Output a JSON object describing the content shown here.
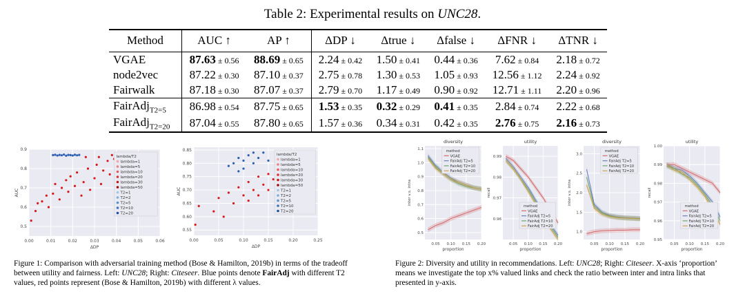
{
  "table": {
    "number": "Table 2:",
    "title": "Experimental results on",
    "dataset": "UNC28",
    "title_end": ".",
    "headers": [
      "Method",
      "AUC ↑",
      "AP ↑",
      "ΔDP ↓",
      "Δtrue ↓",
      "Δfalse ↓",
      "ΔFNR ↓",
      "ΔTNR ↓"
    ],
    "rows": [
      {
        "method": "VGAE",
        "sub": "",
        "cells": [
          [
            "87.63",
            "± 0.56",
            true
          ],
          [
            "88.69",
            "± 0.65",
            true
          ],
          [
            "2.24",
            "± 0.42",
            false
          ],
          [
            "1.50",
            "± 0.41",
            false
          ],
          [
            "0.44",
            "± 0.36",
            false
          ],
          [
            "7.62",
            "± 0.84",
            false
          ],
          [
            "2.18",
            "± 0.72",
            false
          ]
        ]
      },
      {
        "method": "node2vec",
        "sub": "",
        "cells": [
          [
            "87.22",
            "± 0.30",
            false
          ],
          [
            "87.10",
            "± 0.37",
            false
          ],
          [
            "2.75",
            "± 0.78",
            false
          ],
          [
            "1.30",
            "± 0.53",
            false
          ],
          [
            "1.05",
            "± 0.93",
            false
          ],
          [
            "12.56",
            "± 1.12",
            false
          ],
          [
            "2.24",
            "± 0.92",
            false
          ]
        ]
      },
      {
        "method": "Fairwalk",
        "sub": "",
        "cells": [
          [
            "87.18",
            "± 0.30",
            false
          ],
          [
            "87.07",
            "± 0.37",
            false
          ],
          [
            "2.79",
            "± 0.70",
            false
          ],
          [
            "1.17",
            "± 0.49",
            false
          ],
          [
            "0.90",
            "± 0.92",
            false
          ],
          [
            "12.71",
            "± 1.11",
            false
          ],
          [
            "2.20",
            "± 0.96",
            false
          ]
        ]
      },
      {
        "method": "FairAdj",
        "sub": "T2=5",
        "cells": [
          [
            "86.98",
            "± 0.54",
            false
          ],
          [
            "87.75",
            "± 0.65",
            false
          ],
          [
            "1.53",
            "± 0.35",
            true
          ],
          [
            "0.32",
            "± 0.29",
            true
          ],
          [
            "0.41",
            "± 0.35",
            true
          ],
          [
            "2.84",
            "± 0.74",
            false
          ],
          [
            "2.22",
            "± 0.68",
            false
          ]
        ]
      },
      {
        "method": "FairAdj",
        "sub": "T2=20",
        "cells": [
          [
            "87.04",
            "± 0.55",
            false
          ],
          [
            "87.80",
            "± 0.65",
            false
          ],
          [
            "1.57",
            "± 0.36",
            false
          ],
          [
            "0.34",
            "± 0.31",
            false
          ],
          [
            "0.42",
            "± 0.35",
            false
          ],
          [
            "2.76",
            "± 0.75",
            true
          ],
          [
            "2.16",
            "± 0.73",
            true
          ]
        ]
      }
    ]
  },
  "chart_data": [
    {
      "type": "scatter",
      "title": "",
      "xlabel": "ΔDP",
      "ylabel": "AUC",
      "xlim": [
        0,
        0.06
      ],
      "ylim": [
        0.45,
        0.9
      ],
      "xticks": [
        "0.00",
        "0.01",
        "0.02",
        "0.03",
        "0.04",
        "0.05",
        "0.06"
      ],
      "yticks": [
        "0.5",
        "0.6",
        "0.7",
        "0.8",
        "0.9"
      ],
      "legend": [
        "lambda/T2",
        "lambda=1",
        "lambda=5",
        "lambda=10",
        "lambda=20",
        "lambda=30",
        "lambda=50",
        "T2=1",
        "T2=2",
        "T2=5",
        "T2=10",
        "T2=20"
      ],
      "series": [
        {
          "name": "lambda",
          "color": "#d7191c",
          "points": [
            [
              0.001,
              0.53
            ],
            [
              0.003,
              0.58
            ],
            [
              0.004,
              0.62
            ],
            [
              0.006,
              0.63
            ],
            [
              0.008,
              0.66
            ],
            [
              0.009,
              0.6
            ],
            [
              0.011,
              0.67
            ],
            [
              0.012,
              0.72
            ],
            [
              0.014,
              0.64
            ],
            [
              0.015,
              0.7
            ],
            [
              0.017,
              0.74
            ],
            [
              0.018,
              0.68
            ],
            [
              0.019,
              0.76
            ],
            [
              0.021,
              0.71
            ],
            [
              0.022,
              0.78
            ],
            [
              0.024,
              0.66
            ],
            [
              0.025,
              0.73
            ],
            [
              0.027,
              0.8
            ],
            [
              0.028,
              0.69
            ],
            [
              0.03,
              0.75
            ],
            [
              0.031,
              0.82
            ],
            [
              0.033,
              0.72
            ],
            [
              0.034,
              0.79
            ],
            [
              0.036,
              0.84
            ],
            [
              0.037,
              0.77
            ],
            [
              0.039,
              0.85
            ],
            [
              0.041,
              0.8
            ],
            [
              0.043,
              0.83
            ],
            [
              0.045,
              0.87
            ],
            [
              0.026,
              0.86
            ],
            [
              0.032,
              0.86
            ],
            [
              0.038,
              0.87
            ]
          ]
        },
        {
          "name": "T2",
          "color": "#2b5fb4",
          "points": [
            [
              0.011,
              0.87
            ],
            [
              0.012,
              0.872
            ],
            [
              0.013,
              0.868
            ],
            [
              0.014,
              0.871
            ],
            [
              0.015,
              0.869
            ],
            [
              0.016,
              0.873
            ],
            [
              0.017,
              0.867
            ],
            [
              0.018,
              0.871
            ],
            [
              0.019,
              0.87
            ],
            [
              0.02,
              0.868
            ],
            [
              0.021,
              0.872
            ],
            [
              0.022,
              0.869
            ],
            [
              0.023,
              0.871
            ]
          ]
        }
      ]
    },
    {
      "type": "scatter",
      "title": "",
      "xlabel": "ΔDP",
      "ylabel": "AUC",
      "xlim": [
        0,
        0.25
      ],
      "ylim": [
        0.53,
        0.86
      ],
      "xticks": [
        "0.00",
        "0.05",
        "0.10",
        "0.15",
        "0.20",
        "0.25"
      ],
      "yticks": [
        "0.55",
        "0.60",
        "0.65",
        "0.70",
        "0.75",
        "0.80",
        "0.85"
      ],
      "legend": [
        "lambda/T2",
        "lambda=1",
        "lambda=5",
        "lambda=10",
        "lambda=20",
        "lambda=30",
        "lambda=50",
        "T2=1",
        "T2=2",
        "T2=5",
        "T2=10",
        "T2=20"
      ],
      "series": [
        {
          "name": "lambda",
          "color": "#d7191c",
          "points": [
            [
              0.003,
              0.57
            ],
            [
              0.01,
              0.64
            ],
            [
              0.04,
              0.62
            ],
            [
              0.05,
              0.67
            ],
            [
              0.06,
              0.6
            ],
            [
              0.07,
              0.69
            ],
            [
              0.08,
              0.65
            ],
            [
              0.09,
              0.71
            ],
            [
              0.1,
              0.68
            ],
            [
              0.11,
              0.73
            ],
            [
              0.12,
              0.7
            ],
            [
              0.13,
              0.75
            ],
            [
              0.14,
              0.72
            ],
            [
              0.15,
              0.76
            ],
            [
              0.16,
              0.74
            ],
            [
              0.17,
              0.77
            ],
            [
              0.18,
              0.73
            ],
            [
              0.19,
              0.78
            ],
            [
              0.11,
              0.66
            ],
            [
              0.13,
              0.68
            ],
            [
              0.15,
              0.7
            ],
            [
              0.2,
              0.79
            ]
          ]
        },
        {
          "name": "T2",
          "color": "#2b5fb4",
          "points": [
            [
              0.07,
              0.79
            ],
            [
              0.08,
              0.8
            ],
            [
              0.09,
              0.82
            ],
            [
              0.1,
              0.81
            ],
            [
              0.11,
              0.83
            ],
            [
              0.12,
              0.8
            ],
            [
              0.13,
              0.82
            ],
            [
              0.14,
              0.84
            ],
            [
              0.1,
              0.78
            ],
            [
              0.12,
              0.84
            ],
            [
              0.15,
              0.81
            ],
            [
              0.09,
              0.77
            ]
          ]
        }
      ]
    },
    {
      "type": "line",
      "title": "diversity",
      "xlabel": "proportion",
      "ylabel": "inter v.s. intra",
      "x": [
        0.025,
        0.05,
        0.075,
        0.1,
        0.125,
        0.15,
        0.175,
        0.2
      ],
      "xlim": [
        0.015,
        0.2
      ],
      "ylim": [
        0.45,
        1.12
      ],
      "xticks": [
        "0.05",
        "0.10",
        "0.15",
        "0.20"
      ],
      "yticks": [
        "0.5",
        "0.6",
        "0.7",
        "0.8",
        "0.9",
        "1.0",
        "1.1"
      ],
      "legend": [
        "method",
        "VGAE",
        "FairAdj T2=5",
        "FairAdj T2=10",
        "FairAdj T2=20"
      ],
      "series": [
        {
          "name": "VGAE",
          "color": "#d26a6a",
          "values": [
            0.52,
            0.55,
            0.57,
            0.6,
            0.62,
            0.64,
            0.66,
            0.68
          ]
        },
        {
          "name": "FairAdj T2=5",
          "color": "#6a7fc4",
          "values": [
            1.05,
            0.98,
            0.93,
            0.89,
            0.86,
            0.84,
            0.82,
            0.81
          ]
        },
        {
          "name": "FairAdj T2=10",
          "color": "#6aa56a",
          "values": [
            1.04,
            0.97,
            0.92,
            0.88,
            0.85,
            0.83,
            0.82,
            0.81
          ]
        },
        {
          "name": "FairAdj T2=20",
          "color": "#c9a14a",
          "values": [
            1.03,
            0.96,
            0.92,
            0.88,
            0.86,
            0.84,
            0.82,
            0.81
          ]
        }
      ]
    },
    {
      "type": "line",
      "title": "utility",
      "xlabel": "proportion",
      "ylabel": "recall",
      "x": [
        0.025,
        0.05,
        0.075,
        0.1,
        0.125,
        0.15,
        0.175,
        0.2
      ],
      "xlim": [
        0.015,
        0.2
      ],
      "ylim": [
        0.95,
        0.995
      ],
      "xticks": [
        "0.05",
        "0.10",
        "0.15",
        "0.20"
      ],
      "yticks": [
        "0.96",
        "0.97",
        "0.98",
        "0.99"
      ],
      "legend": [
        "method",
        "VGAE",
        "FairAdj T2=5",
        "FairAdj T2=10",
        "FairAdj T2=20"
      ],
      "series": [
        {
          "name": "VGAE",
          "color": "#d26a6a",
          "values": [
            0.99,
            0.988,
            0.984,
            0.98,
            0.975,
            0.97,
            0.964,
            0.958
          ]
        },
        {
          "name": "FairAdj T2=5",
          "color": "#6a7fc4",
          "values": [
            0.989,
            0.985,
            0.98,
            0.975,
            0.969,
            0.963,
            0.957,
            0.952
          ]
        },
        {
          "name": "FairAdj T2=10",
          "color": "#6aa56a",
          "values": [
            0.988,
            0.984,
            0.979,
            0.974,
            0.968,
            0.962,
            0.956,
            0.951
          ]
        },
        {
          "name": "FairAdj T2=20",
          "color": "#c9a14a",
          "values": [
            0.988,
            0.984,
            0.979,
            0.973,
            0.967,
            0.961,
            0.955,
            0.95
          ]
        }
      ]
    },
    {
      "type": "line",
      "title": "diversity",
      "xlabel": "proportion",
      "ylabel": "inter v.s. intra",
      "x": [
        0.025,
        0.05,
        0.075,
        0.1,
        0.125,
        0.15,
        0.175,
        0.2
      ],
      "xlim": [
        0.015,
        0.2
      ],
      "ylim": [
        0.8,
        3.2
      ],
      "xticks": [
        "0.05",
        "0.10",
        "0.15",
        "0.20"
      ],
      "yticks": [
        "1.0",
        "1.5",
        "2.0",
        "2.5",
        "3.0"
      ],
      "legend": [
        "method",
        "VGAE",
        "FairAdj T2=5",
        "FairAdj T2=10",
        "FairAdj T2=20"
      ],
      "series": [
        {
          "name": "VGAE",
          "color": "#d26a6a",
          "values": [
            0.95,
            1.0,
            1.02,
            1.03,
            1.04,
            1.04,
            1.05,
            1.05
          ]
        },
        {
          "name": "FairAdj T2=5",
          "color": "#6a7fc4",
          "values": [
            2.6,
            1.7,
            1.5,
            1.42,
            1.38,
            1.36,
            1.35,
            1.34
          ]
        },
        {
          "name": "FairAdj T2=10",
          "color": "#6aa56a",
          "values": [
            2.4,
            1.65,
            1.48,
            1.4,
            1.37,
            1.35,
            1.34,
            1.33
          ]
        },
        {
          "name": "FairAdj T2=20",
          "color": "#c9a14a",
          "values": [
            2.2,
            1.6,
            1.45,
            1.39,
            1.36,
            1.35,
            1.34,
            1.33
          ]
        }
      ]
    },
    {
      "type": "line",
      "title": "utility",
      "xlabel": "proportion",
      "ylabel": "recall",
      "x": [
        0.025,
        0.05,
        0.075,
        0.1,
        0.125,
        0.15,
        0.175,
        0.2
      ],
      "xlim": [
        0.015,
        0.2
      ],
      "ylim": [
        0.95,
        1.0
      ],
      "xticks": [
        "0.05",
        "0.10",
        "0.15",
        "0.20"
      ],
      "yticks": [
        "0.95",
        "0.96",
        "0.97",
        "0.98",
        "0.99",
        "1.00"
      ],
      "legend": [
        "method",
        "VGAE",
        "FairAdj T2=5",
        "FairAdj T2=10",
        "FairAdj T2=20"
      ],
      "series": [
        {
          "name": "VGAE",
          "color": "#d26a6a",
          "values": [
            0.99,
            0.99,
            0.988,
            0.986,
            0.984,
            0.982,
            0.98,
            0.975
          ]
        },
        {
          "name": "FairAdj T2=5",
          "color": "#6a7fc4",
          "values": [
            0.99,
            0.988,
            0.987,
            0.984,
            0.98,
            0.975,
            0.97,
            0.962
          ]
        },
        {
          "name": "FairAdj T2=10",
          "color": "#6aa56a",
          "values": [
            0.989,
            0.988,
            0.985,
            0.983,
            0.979,
            0.974,
            0.968,
            0.96
          ]
        },
        {
          "name": "FairAdj T2=20",
          "color": "#c9a14a",
          "values": [
            0.99,
            0.987,
            0.986,
            0.982,
            0.978,
            0.973,
            0.966,
            0.958
          ]
        }
      ]
    }
  ],
  "fig1_caption": {
    "label": "Figure 1:",
    "text1": " Comparison with adversarial training method (Bose & Hamilton, 2019b) in terms of the tradeoff between utility and fairness. Left: ",
    "ds1": "UNC28",
    "text2": "; Right: ",
    "ds2": "Citeseer",
    "text3": ". Blue points denote ",
    "bold": "FairAdj",
    "text4": " with different T2 values, red points represent (Bose & Hamilton, 2019b) with different λ values."
  },
  "fig2_caption": {
    "label": "Figure 2:",
    "text1": " Diversity and utility in recommendations. Left: ",
    "ds1": "UNC28",
    "text2": "; Right: ",
    "ds2": "Citeseer",
    "text3": ". X-axis ‘proportion’ means we investigate the top x% valued links and check the ratio between inter and intra links that presented in y-axis."
  }
}
